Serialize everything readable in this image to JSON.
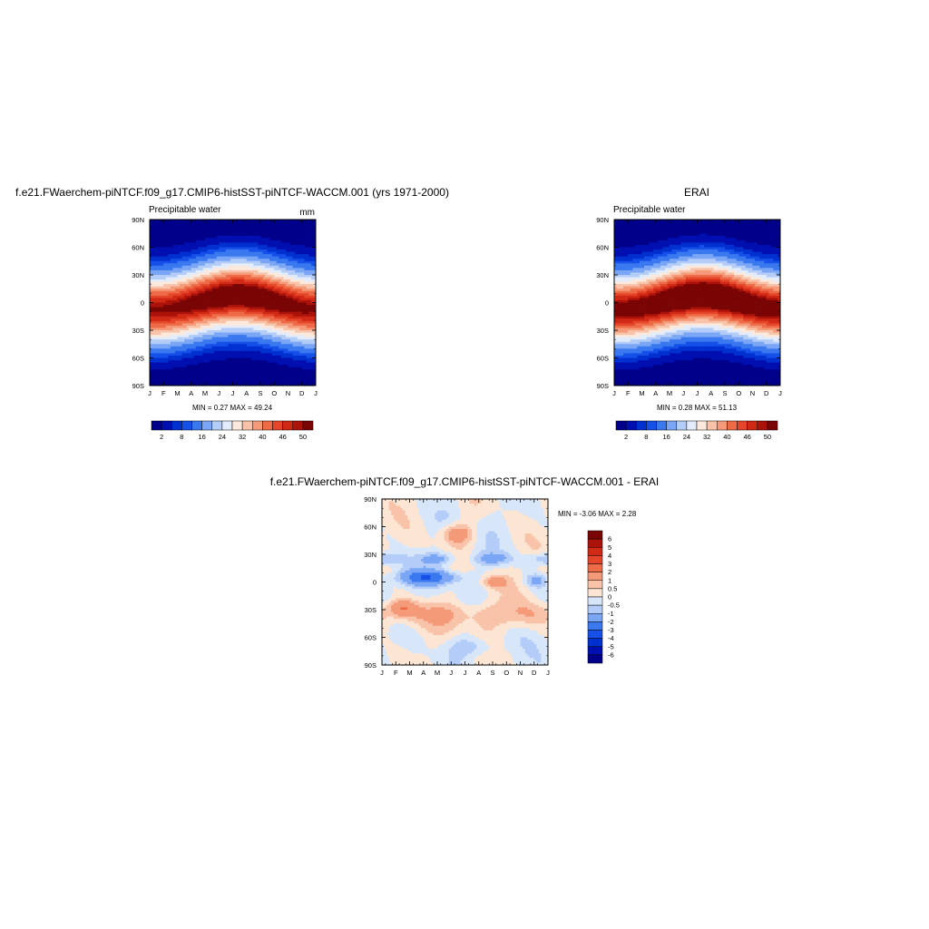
{
  "chart_data": [
    {
      "type": "heatmap",
      "title": "f.e21.FWaerchem-piNTCF.f09_g17.CMIP6-histSST-piNTCF-WACCM.001 (yrs 1971-2000)",
      "left_string": "Precipitable water",
      "right_string": "mm",
      "x_tick_labels": [
        "J",
        "F",
        "M",
        "A",
        "M",
        "J",
        "J",
        "A",
        "S",
        "O",
        "N",
        "D",
        "J"
      ],
      "y_tick_labels": [
        "90N",
        "60N",
        "30N",
        "0",
        "30S",
        "60S",
        "90S"
      ],
      "min": 0.27,
      "max": 49.24,
      "stats_label": "MIN =   0.27 MAX =   49.24",
      "colorbar_labels": [
        "2",
        "8",
        "16",
        "24",
        "32",
        "40",
        "46",
        "50"
      ],
      "field": {
        "peak": 48,
        "amp": 42,
        "width": 28,
        "shift": 8,
        "polar_floor": 3,
        "noise": 0
      }
    },
    {
      "type": "heatmap",
      "title": "ERAI",
      "left_string": "Precipitable water",
      "x_tick_labels": [
        "J",
        "F",
        "M",
        "A",
        "M",
        "J",
        "J",
        "A",
        "S",
        "O",
        "N",
        "D",
        "J"
      ],
      "y_tick_labels": [
        "90N",
        "60N",
        "30N",
        "0",
        "30S",
        "60S",
        "90S"
      ],
      "min": 0.28,
      "max": 51.13,
      "stats_label": "MIN =   0.28 MAX =   51.13",
      "colorbar_labels": [
        "2",
        "8",
        "16",
        "24",
        "32",
        "40",
        "46",
        "50"
      ],
      "field": {
        "peak": 50.5,
        "amp": 44,
        "width": 28,
        "shift": 8,
        "polar_floor": 3,
        "noise": 0
      }
    },
    {
      "type": "heatmap",
      "title": "f.e21.FWaerchem-piNTCF.f09_g17.CMIP6-histSST-piNTCF-WACCM.001 - ERAI",
      "x_tick_labels": [
        "J",
        "F",
        "M",
        "A",
        "M",
        "J",
        "J",
        "A",
        "S",
        "O",
        "N",
        "D",
        "J"
      ],
      "y_tick_labels": [
        "90N",
        "60N",
        "30N",
        "0",
        "30S",
        "60S",
        "90S"
      ],
      "min": -3.06,
      "max": 2.28,
      "stats_label": "MIN =  -3.06 MAX =   2.28",
      "colorbar_labels": [
        "6",
        "5",
        "4",
        "3",
        "2",
        "1",
        "0.5",
        "0",
        "-0.5",
        "-1",
        "-2",
        "-3",
        "-4",
        "-5",
        "-6"
      ]
    }
  ],
  "colors": {
    "seq_palette": [
      "#00008b",
      "#0010b0",
      "#0030d0",
      "#1550e8",
      "#3a78f0",
      "#7aa6f5",
      "#b3cdf8",
      "#e2ecfb",
      "#fde8dc",
      "#f8c3a8",
      "#f49a78",
      "#ee6b48",
      "#e5462a",
      "#d02a16",
      "#aa120a",
      "#7a0505"
    ],
    "diff_palette": [
      "#00008b",
      "#0010b0",
      "#0030d0",
      "#1550e8",
      "#3a78f0",
      "#7aa6f5",
      "#b3cdf8",
      "#d8e6fa",
      "#fde5d4",
      "#f8c3a8",
      "#f49a78",
      "#ee6b48",
      "#e5462a",
      "#d02a16",
      "#aa120a",
      "#7a0505"
    ]
  }
}
